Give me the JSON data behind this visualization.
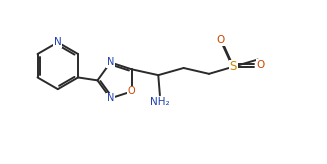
{
  "bg_color": "#ffffff",
  "line_color": "#2a2a2a",
  "atom_colors": {
    "N": "#2040b0",
    "O": "#cc4400",
    "S": "#cc8800"
  },
  "figsize": [
    3.27,
    1.64
  ],
  "dpi": 100
}
